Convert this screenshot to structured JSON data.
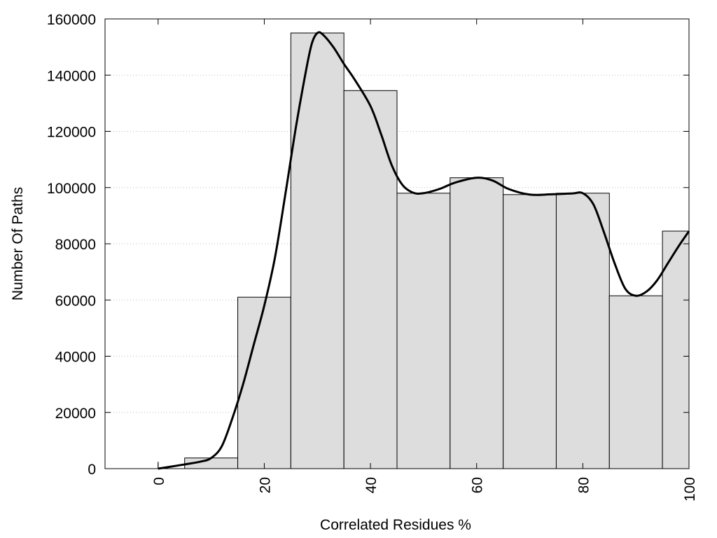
{
  "chart_data": {
    "type": "bar",
    "title": "",
    "xlabel": "Correlated Residues %",
    "ylabel": "Number Of Paths",
    "xlim": [
      -10,
      100
    ],
    "ylim": [
      0,
      160000
    ],
    "x_ticks": [
      0,
      20,
      40,
      60,
      80,
      100
    ],
    "y_ticks": [
      0,
      20000,
      40000,
      60000,
      80000,
      100000,
      120000,
      140000,
      160000
    ],
    "bar_width": 10,
    "bars": [
      {
        "x": 0,
        "value": 0
      },
      {
        "x": 10,
        "value": 3800
      },
      {
        "x": 20,
        "value": 61000
      },
      {
        "x": 30,
        "value": 155000
      },
      {
        "x": 40,
        "value": 134500
      },
      {
        "x": 50,
        "value": 98000
      },
      {
        "x": 60,
        "value": 103500
      },
      {
        "x": 70,
        "value": 97500
      },
      {
        "x": 80,
        "value": 98000
      },
      {
        "x": 90,
        "value": 61500
      },
      {
        "x": 100,
        "value": 84500
      }
    ],
    "curve": [
      [
        0,
        0
      ],
      [
        5,
        1500
      ],
      [
        8,
        2500
      ],
      [
        10,
        3800
      ],
      [
        12,
        8000
      ],
      [
        14,
        18000
      ],
      [
        16,
        30000
      ],
      [
        18,
        44000
      ],
      [
        20,
        58000
      ],
      [
        22,
        75000
      ],
      [
        24,
        98000
      ],
      [
        26,
        122000
      ],
      [
        28,
        143000
      ],
      [
        29,
        151500
      ],
      [
        30,
        155000
      ],
      [
        31,
        154500
      ],
      [
        33,
        150000
      ],
      [
        35,
        144000
      ],
      [
        37,
        138500
      ],
      [
        40,
        129000
      ],
      [
        42,
        119000
      ],
      [
        44,
        108000
      ],
      [
        46,
        101000
      ],
      [
        48,
        98200
      ],
      [
        50,
        98000
      ],
      [
        53,
        99500
      ],
      [
        56,
        101800
      ],
      [
        60,
        103500
      ],
      [
        63,
        102500
      ],
      [
        66,
        99500
      ],
      [
        70,
        97500
      ],
      [
        74,
        97600
      ],
      [
        78,
        97900
      ],
      [
        80,
        98000
      ],
      [
        82,
        94000
      ],
      [
        84,
        84000
      ],
      [
        86,
        73000
      ],
      [
        88,
        64000
      ],
      [
        90,
        61500
      ],
      [
        92,
        63000
      ],
      [
        94,
        67000
      ],
      [
        96,
        73000
      ],
      [
        98,
        79000
      ],
      [
        100,
        84500
      ]
    ],
    "grid": {
      "y": true,
      "style": "dotted"
    },
    "legend": "none"
  }
}
